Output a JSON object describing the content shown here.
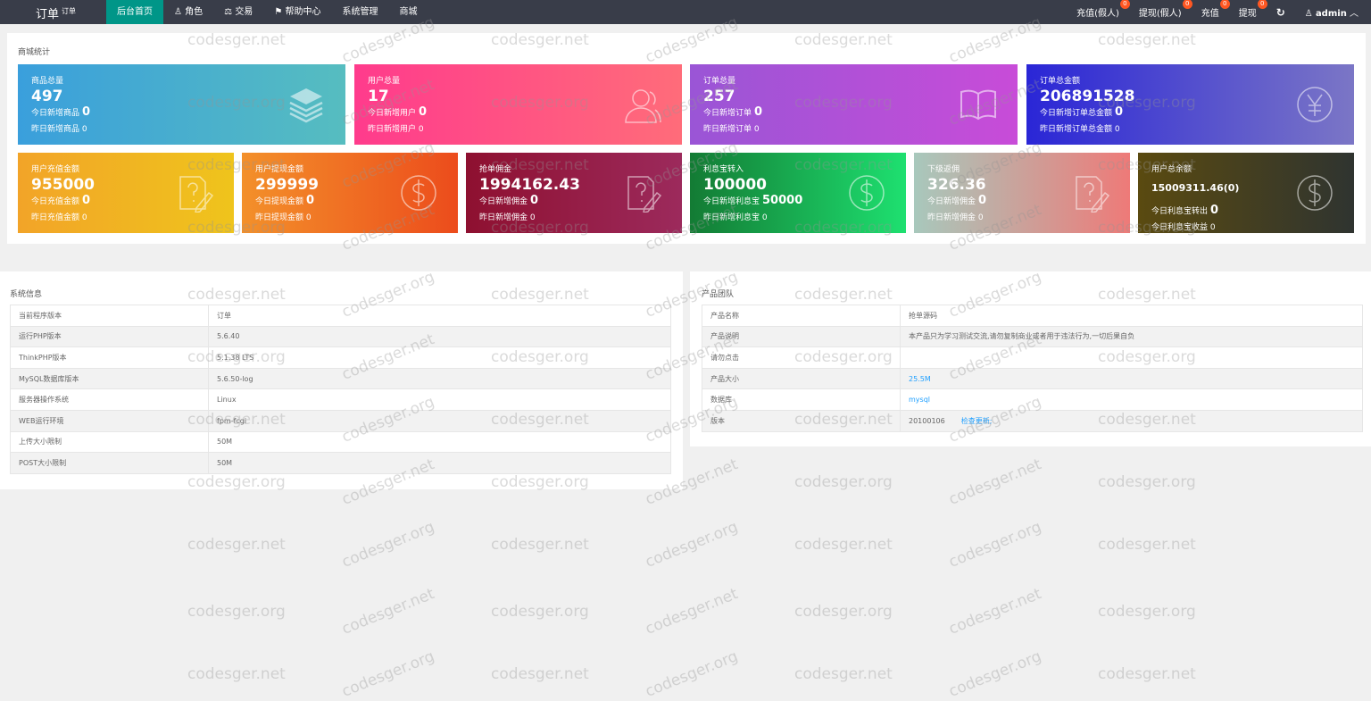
{
  "header": {
    "logo": "订单",
    "logo_sup": "订单",
    "nav": [
      {
        "label": "后台首页",
        "icon": ""
      },
      {
        "label": "角色",
        "icon": "user-icon"
      },
      {
        "label": "交易",
        "icon": "scale-icon"
      },
      {
        "label": "帮助中心",
        "icon": "flag-icon"
      },
      {
        "label": "系统管理",
        "icon": ""
      },
      {
        "label": "商城",
        "icon": ""
      }
    ],
    "right": [
      {
        "label": "充值(假人)",
        "badge": "0"
      },
      {
        "label": "提现(假人)",
        "badge": "0"
      },
      {
        "label": "充值",
        "badge": "0"
      },
      {
        "label": "提现",
        "badge": "0"
      }
    ],
    "refresh_icon": "↻",
    "user": "admin"
  },
  "stats": {
    "title": "商城统计",
    "row1": [
      {
        "title": "商品总量",
        "value": "497",
        "today": "今日新增商品",
        "today_v": "0",
        "yest": "昨日新增商品 0",
        "icon": "layers-icon",
        "bg": "linear-gradient(90deg,#3a9fdc,#56bdc0)"
      },
      {
        "title": "用户总量",
        "value": "17",
        "today": "今日新增用户",
        "today_v": "0",
        "yest": "昨日新增用户 0",
        "icon": "user-icon",
        "bg": "linear-gradient(90deg,#ff3b8c,#ff6c7a)"
      },
      {
        "title": "订单总量",
        "value": "257",
        "today": "今日新增订单",
        "today_v": "0",
        "yest": "昨日新增订单 0",
        "icon": "book-icon",
        "bg": "linear-gradient(90deg,#9a55d6,#c84cd8)"
      },
      {
        "title": "订单总金额",
        "value": "206891528",
        "today": "今日新增订单总金额",
        "today_v": "0",
        "yest": "昨日新增订单总金额 0",
        "icon": "yen-icon",
        "bg": "linear-gradient(90deg,#2a26d6,#7b76c6)"
      }
    ],
    "row2": [
      {
        "title": "用户充值金额",
        "value": "955000",
        "today": "今日充值金额",
        "today_v": "0",
        "yest": "昨日充值金额 0",
        "icon": "note-icon",
        "bg": "linear-gradient(90deg,#f2a428,#efc41c)"
      },
      {
        "title": "用户提现金额",
        "value": "299999",
        "today": "今日提现金额",
        "today_v": "0",
        "yest": "昨日提现金额 0",
        "icon": "dollar-icon",
        "bg": "linear-gradient(90deg,#f3902a,#ec4c1c)"
      },
      {
        "title": "抢单佣金",
        "value": "1994162.43",
        "today": "今日新增佣金",
        "today_v": "0",
        "yest": "昨日新增佣金 0",
        "icon": "note-icon",
        "bg": "linear-gradient(90deg,#8e1030,#9c2a5c)"
      },
      {
        "title": "利息宝转入",
        "value": "100000",
        "today": "今日新增利息宝",
        "today_v": "50000",
        "yest": "昨日新增利息宝 0",
        "icon": "dollar-icon",
        "bg": "linear-gradient(90deg,#137b34,#1ee070)"
      },
      {
        "title": "下级返佣",
        "value": "326.36",
        "today": "今日新增佣金",
        "today_v": "0",
        "yest": "昨日新增佣金 0",
        "icon": "note-icon",
        "bg": "linear-gradient(90deg,#a8c8bc,#ee7a78)"
      },
      {
        "title": "用户总余额",
        "value": "15009311.46(0)",
        "today": "今日利息宝转出",
        "today_v": "0",
        "yest": "今日利息宝收益 0",
        "icon": "dollar-icon",
        "bg": "linear-gradient(90deg,#5a4a10,#2f3430)",
        "small": true
      }
    ]
  },
  "system": {
    "title": "系统信息",
    "rows": [
      [
        "当前程序版本",
        "订单"
      ],
      [
        "运行PHP版本",
        "5.6.40"
      ],
      [
        "ThinkPHP版本",
        "5.1.38 LTS"
      ],
      [
        "MySQL数据库版本",
        "5.6.50-log"
      ],
      [
        "服务器操作系统",
        "Linux"
      ],
      [
        "WEB运行环境",
        "fpm-fcgi"
      ],
      [
        "上传大小限制",
        "50M"
      ],
      [
        "POST大小限制",
        "50M"
      ]
    ]
  },
  "product": {
    "title": "产品团队",
    "rows": [
      [
        "产品名称",
        "抢单源码"
      ],
      [
        "产品说明",
        "本产品只为学习测试交流,请勿复制商业或者用于违法行为,一切后果自负"
      ],
      [
        "请勿点击",
        ""
      ],
      [
        "产品大小",
        "25.5M"
      ],
      [
        "数据库",
        "mysql"
      ],
      [
        "版本",
        "20100106"
      ]
    ],
    "check_update": "检查更新;"
  },
  "watermarks": [
    "codesger.net",
    "codesger.org"
  ]
}
